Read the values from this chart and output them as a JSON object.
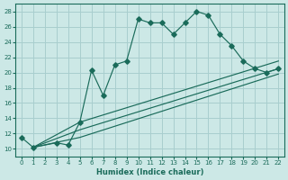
{
  "xlabel": "Humidex (Indice chaleur)",
  "bg_color": "#cce8e6",
  "grid_color": "#a8cece",
  "line_color": "#1a6b5a",
  "xlim": [
    -0.5,
    22.5
  ],
  "ylim": [
    9,
    29
  ],
  "xticks": [
    0,
    1,
    2,
    3,
    4,
    5,
    6,
    7,
    8,
    9,
    10,
    11,
    12,
    13,
    14,
    15,
    16,
    17,
    18,
    19,
    20,
    21,
    22
  ],
  "yticks": [
    10,
    12,
    14,
    16,
    18,
    20,
    22,
    24,
    26,
    28
  ],
  "main_x": [
    0,
    1,
    3,
    4,
    5,
    6,
    7,
    8,
    9,
    10,
    11,
    12,
    13,
    14,
    15,
    16,
    17,
    18,
    19,
    20,
    21,
    22
  ],
  "main_y": [
    11.5,
    10.2,
    10.8,
    10.5,
    13.5,
    20.3,
    17.0,
    21.0,
    21.5,
    27.0,
    26.5,
    26.5,
    25.0,
    26.5,
    28.0,
    27.5,
    25.0,
    23.5,
    21.5,
    20.5,
    20.0,
    20.5
  ],
  "fan_lines": [
    {
      "x": [
        1,
        5,
        22
      ],
      "y": [
        10.2,
        13.5,
        21.5
      ]
    },
    {
      "x": [
        1,
        5,
        22
      ],
      "y": [
        10.2,
        12.5,
        20.5
      ]
    },
    {
      "x": [
        1,
        5,
        22
      ],
      "y": [
        10.2,
        11.5,
        19.8
      ]
    }
  ]
}
